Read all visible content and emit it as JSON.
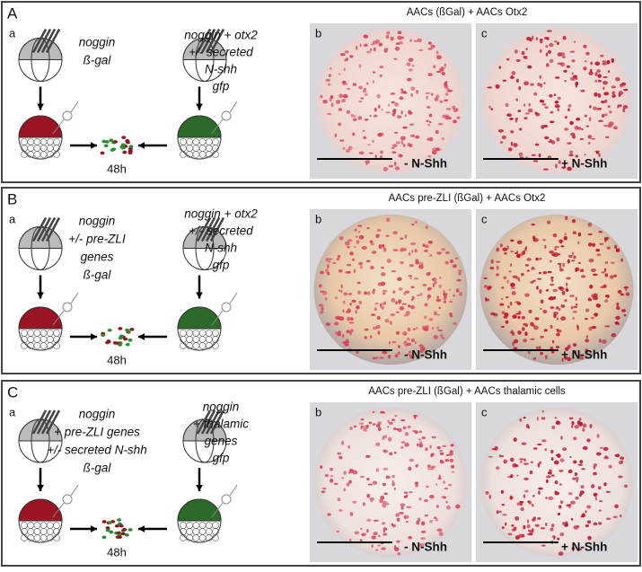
{
  "panels": [
    {
      "label": "A",
      "sub": "a",
      "left_text": [
        "noggin",
        "ß-gal"
      ],
      "right_text": [
        "noggin + otx2",
        "+/- secreted",
        "N-shh",
        "gfp"
      ],
      "time": "48h",
      "photo_title": "AACs  (ßGal) + AACs Otx2",
      "photos": [
        {
          "label": "b",
          "caption": "- N-Shh"
        },
        {
          "label": "c",
          "caption": "+ N-Shh"
        }
      ]
    },
    {
      "label": "B",
      "sub": "a",
      "left_text": [
        "noggin",
        "+/- pre-ZLI",
        "genes",
        "ß-gal"
      ],
      "right_text": [
        "noggin + otx2",
        "+/- secreted",
        "N-shh",
        "gfp"
      ],
      "time": "48h",
      "photo_title": "AACs pre-ZLI (ßGal) + AACs Otx2",
      "photos": [
        {
          "label": "b",
          "caption": "- N-Shh"
        },
        {
          "label": "c",
          "caption": "+ N-Shh"
        }
      ]
    },
    {
      "label": "C",
      "sub": "a",
      "left_text": [
        "noggin",
        "+ pre-ZLI genes",
        "+/- secreted N-shh",
        "ß-gal"
      ],
      "right_text": [
        "noggin",
        "+ thalamic",
        "genes",
        "gfp"
      ],
      "time": "48h",
      "photo_title": "AACs pre-ZLI  (ßGal) + AACs thalamic cells",
      "photos": [
        {
          "label": "b",
          "caption": "- N-Shh"
        },
        {
          "label": "c",
          "caption": "+ N-Shh"
        }
      ]
    }
  ]
}
